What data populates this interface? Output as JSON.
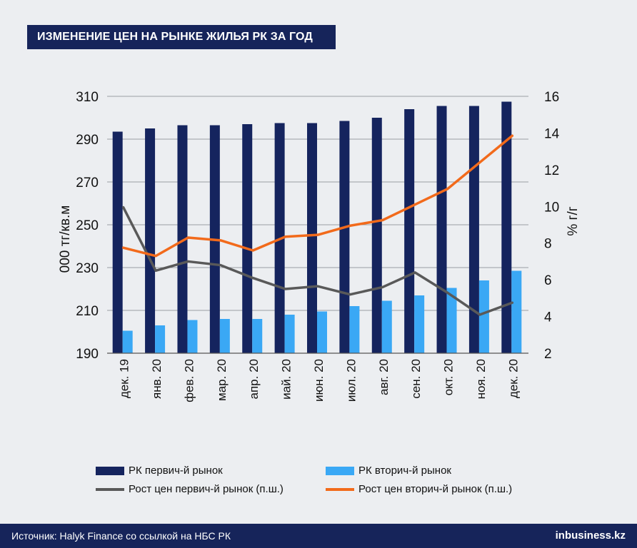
{
  "header": {
    "title": "ИЗМЕНЕНИЕ ЦЕН НА РЫНКЕ ЖИЛЬЯ РК ЗА ГОД"
  },
  "footer": {
    "source": "Источник: Halyk Finance со ссылкой на НБС РК",
    "brand": "inbusiness.kz"
  },
  "chart_data": {
    "type": "bar",
    "categories": [
      "дек. 19",
      "янв. 20",
      "фев. 20",
      "мар. 20",
      "апр. 20",
      "иай. 20",
      "июн. 20",
      "июл. 20",
      "авг. 20",
      "сен. 20",
      "окт. 20",
      "ноя. 20",
      "дек. 20"
    ],
    "ylabel": "000 тг/кв.м",
    "y2label": "% г/г",
    "ylim": [
      190,
      310
    ],
    "yticks": [
      190,
      210,
      230,
      250,
      270,
      290,
      310
    ],
    "y2lim": [
      2,
      16
    ],
    "y2ticks": [
      2,
      4,
      6,
      8,
      10,
      12,
      14,
      16
    ],
    "grid": true,
    "legend_position": "bottom",
    "series": [
      {
        "name": "РК первич-й рынок",
        "type": "bar",
        "axis": "left",
        "color": "#15245e",
        "values": [
          293.5,
          295,
          296.5,
          296.5,
          297,
          297.5,
          297.5,
          298.5,
          300,
          304,
          305.5,
          305.5,
          307.5
        ]
      },
      {
        "name": "РК вторич-й рынок",
        "type": "bar",
        "axis": "left",
        "color": "#3aa8f5",
        "values": [
          200.5,
          203,
          205.5,
          206,
          206,
          208,
          209.5,
          212,
          214.5,
          217,
          220.5,
          224,
          228.5
        ]
      },
      {
        "name": "Рост цен первич-й рынок (п.ш.)",
        "type": "line",
        "axis": "right",
        "color": "#595959",
        "values": [
          9.95,
          6.5,
          7.0,
          6.8,
          6.1,
          5.5,
          5.65,
          5.2,
          5.6,
          6.4,
          5.3,
          4.1,
          4.75
        ]
      },
      {
        "name": "Рост цен вторич-й рынок (п.ш.)",
        "type": "line",
        "axis": "right",
        "color": "#f26a1b",
        "values": [
          7.75,
          7.3,
          8.3,
          8.15,
          7.6,
          8.35,
          8.45,
          8.95,
          9.25,
          10.1,
          10.95,
          12.4,
          13.85
        ]
      }
    ]
  }
}
